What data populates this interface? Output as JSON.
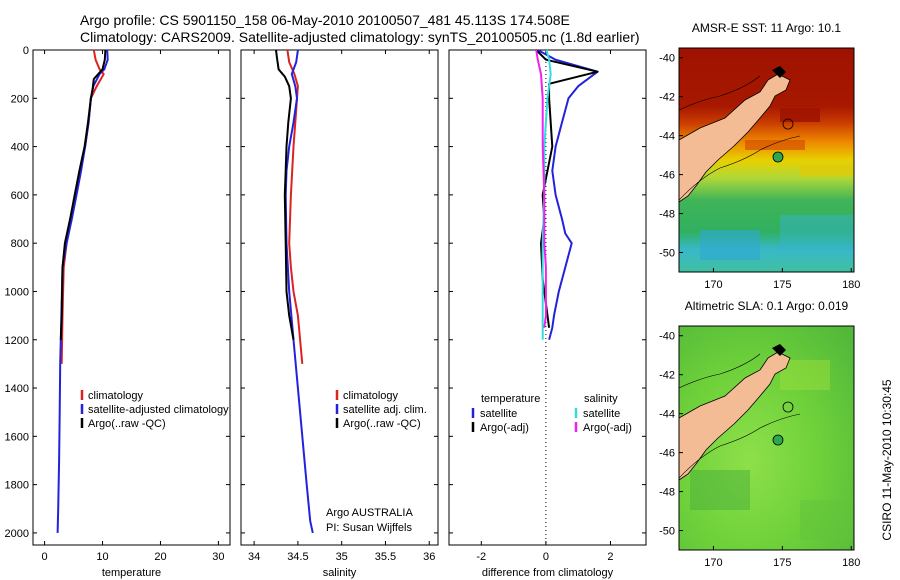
{
  "header": {
    "line1": "Argo profile: CS 5901150_158 06-May-2010 20100507_481 45.113S 174.508E",
    "line2": "Climatology: CARS2009. Satellite-adjusted climatology: synTS_20100505.nc (1.8d earlier)"
  },
  "side_label": "CSIRO 11-May-2010 10:30:45",
  "colors": {
    "climatology": "#dd2222",
    "satellite": "#2222dd",
    "argo": "#000000",
    "satellite_salinity": "#33dddd",
    "argo_salinity": "#ee22ee",
    "sst_warm": "#9e1200",
    "sla_green": "#6fd13a"
  },
  "chart_data": [
    {
      "id": "temperature",
      "type": "line",
      "xlabel": "temperature",
      "ylabel": "",
      "xlim": [
        -2,
        32
      ],
      "ylim": [
        2050,
        0
      ],
      "xticks": [
        0,
        10,
        20,
        30
      ],
      "yticks": [
        0,
        200,
        400,
        600,
        800,
        1000,
        1200,
        1400,
        1600,
        1800,
        2000
      ],
      "legend": [
        "climatology",
        "satellite-adjusted climatology",
        "Argo(..raw -QC)"
      ],
      "series": [
        {
          "name": "climatology",
          "color": "#dd2222",
          "x": [
            8.5,
            8.8,
            9.5,
            10.2,
            9.0,
            8.0,
            7.6,
            7.0,
            6.2,
            5.4,
            4.6,
            3.8,
            3.3,
            3.1,
            2.95
          ],
          "y": [
            0,
            40,
            80,
            100,
            150,
            200,
            300,
            400,
            500,
            600,
            700,
            800,
            900,
            1100,
            1300
          ]
        },
        {
          "name": "satellite-adjusted climatology",
          "color": "#2222dd",
          "x": [
            10.8,
            10.9,
            10.3,
            9.5,
            8.4,
            8.0,
            7.6,
            7.0,
            6.3,
            5.5,
            4.7,
            3.8,
            3.1,
            2.9,
            2.7,
            2.6,
            2.5,
            2.35,
            2.25
          ],
          "y": [
            0,
            40,
            80,
            100,
            150,
            200,
            300,
            400,
            500,
            600,
            700,
            800,
            900,
            1100,
            1300,
            1500,
            1700,
            1900,
            2000
          ]
        },
        {
          "name": "Argo(..raw -QC)",
          "color": "#000000",
          "x": [
            10.5,
            10.4,
            10.0,
            8.5,
            8.3,
            8.0,
            7.5,
            6.9,
            6.0,
            5.2,
            4.4,
            3.5,
            3.1,
            2.95,
            2.8
          ],
          "y": [
            0,
            40,
            80,
            120,
            160,
            200,
            300,
            400,
            500,
            600,
            700,
            800,
            900,
            1100,
            1200
          ]
        }
      ]
    },
    {
      "id": "salinity",
      "type": "line",
      "xlabel": "salinity",
      "ylabel": "",
      "xlim": [
        33.85,
        36.1
      ],
      "ylim": [
        2050,
        0
      ],
      "xticks": [
        34,
        34.5,
        35,
        35.5,
        36
      ],
      "legend": [
        "climatology",
        "satellite adj. clim.",
        "Argo(..raw -QC)"
      ],
      "annotation": [
        "Argo AUSTRALIA",
        "PI: Susan Wijffels"
      ],
      "series": [
        {
          "name": "climatology",
          "color": "#dd2222",
          "x": [
            34.38,
            34.4,
            34.46,
            34.5,
            34.49,
            34.47,
            34.45,
            34.42,
            34.4,
            34.42,
            34.45,
            34.5,
            34.55
          ],
          "y": [
            0,
            50,
            100,
            150,
            200,
            300,
            400,
            600,
            800,
            900,
            1000,
            1100,
            1300
          ]
        },
        {
          "name": "satellite adj. clim.",
          "color": "#2222dd",
          "x": [
            34.5,
            34.48,
            34.43,
            34.47,
            34.49,
            34.45,
            34.4,
            34.37,
            34.36,
            34.37,
            34.4,
            34.45,
            34.5,
            34.55,
            34.6,
            34.64,
            34.67
          ],
          "y": [
            0,
            50,
            100,
            150,
            200,
            300,
            400,
            500,
            600,
            800,
            1000,
            1200,
            1400,
            1600,
            1800,
            1950,
            2000
          ]
        },
        {
          "name": "Argo(..raw -QC)",
          "color": "#000000",
          "x": [
            34.25,
            34.26,
            34.28,
            34.35,
            34.4,
            34.42,
            34.39,
            34.37,
            34.36,
            34.35,
            34.36,
            34.37,
            34.4,
            34.45
          ],
          "y": [
            0,
            30,
            80,
            110,
            150,
            200,
            300,
            400,
            500,
            600,
            800,
            1000,
            1100,
            1200
          ]
        }
      ]
    },
    {
      "id": "difference",
      "type": "line",
      "xlabel": "difference from climatology",
      "ylabel": "",
      "xlim": [
        -3,
        3.1
      ],
      "ylim": [
        2050,
        0
      ],
      "xticks": [
        -2,
        0,
        2
      ],
      "legend_titles": [
        "temperature",
        "salinity"
      ],
      "legend": [
        "satellite",
        "Argo(-adj)",
        "satellite",
        "Argo(-adj)"
      ],
      "series": [
        {
          "name": "satellite",
          "group": "temperature",
          "color": "#2222dd",
          "x": [
            -0.25,
            0.3,
            1.6,
            1.0,
            0.7,
            0.5,
            0.3,
            0.2,
            0.3,
            0.5,
            0.6,
            0.8,
            0.6,
            0.4,
            0.25,
            0.2,
            0.1
          ],
          "y": [
            0,
            40,
            90,
            150,
            200,
            300,
            400,
            500,
            600,
            700,
            760,
            800,
            900,
            1000,
            1100,
            1150,
            1200
          ]
        },
        {
          "name": "Argo(-adj)",
          "group": "temperature",
          "color": "#000000",
          "x": [
            -0.3,
            0.0,
            1.6,
            0.1,
            0.1,
            0.2,
            0.05,
            -0.1,
            -0.05,
            -0.15,
            -0.1,
            0.0,
            0.05,
            0.1
          ],
          "y": [
            0,
            40,
            90,
            140,
            200,
            400,
            500,
            600,
            700,
            800,
            950,
            1050,
            1100,
            1150
          ]
        },
        {
          "name": "satellite",
          "group": "salinity",
          "color": "#33dddd",
          "x": [
            0.02,
            0.1,
            0.15,
            0.05,
            0.0,
            -0.05,
            -0.05,
            -0.1,
            -0.1,
            -0.1,
            -0.1,
            -0.1
          ],
          "y": [
            0,
            40,
            100,
            200,
            300,
            400,
            600,
            800,
            1000,
            1100,
            1150,
            1200
          ]
        },
        {
          "name": "Argo(-adj)",
          "group": "salinity",
          "color": "#ee22ee",
          "x": [
            -0.3,
            -0.25,
            -0.15,
            -0.1,
            -0.1,
            -0.05,
            -0.05,
            0.0,
            0.0,
            0.0,
            -0.05
          ],
          "y": [
            0,
            40,
            100,
            200,
            400,
            600,
            800,
            900,
            1000,
            1100,
            1150
          ]
        }
      ]
    },
    {
      "id": "sst_map",
      "type": "heatmap",
      "title": "AMSR-E SST: 11  Argo: 10.1",
      "xlim": [
        167.5,
        180.2
      ],
      "ylim": [
        -51,
        -39.5
      ],
      "xticks": [
        170,
        175,
        180
      ],
      "yticks": [
        -40,
        -42,
        -44,
        -46,
        -48,
        -50
      ],
      "argo_position": {
        "lon": 174.508,
        "lat": -45.113
      },
      "colors": [
        "#9e1200",
        "#c83a00",
        "#ee8800",
        "#e8d000",
        "#8fd040",
        "#30b060",
        "#30b8d8"
      ]
    },
    {
      "id": "sla_map",
      "type": "heatmap",
      "title": "Altimetric SLA: 0.1  Argo: 0.019",
      "xlim": [
        167.5,
        180.2
      ],
      "ylim": [
        -51,
        -39.5
      ],
      "xticks": [
        170,
        175,
        180
      ],
      "yticks": [
        -40,
        -42,
        -44,
        -46,
        -48,
        -50
      ],
      "argo_position": {
        "lon": 174.508,
        "lat": -45.113
      },
      "colors": [
        "#5cc23a",
        "#7ad64a",
        "#9ee23a",
        "#48b048"
      ]
    }
  ]
}
